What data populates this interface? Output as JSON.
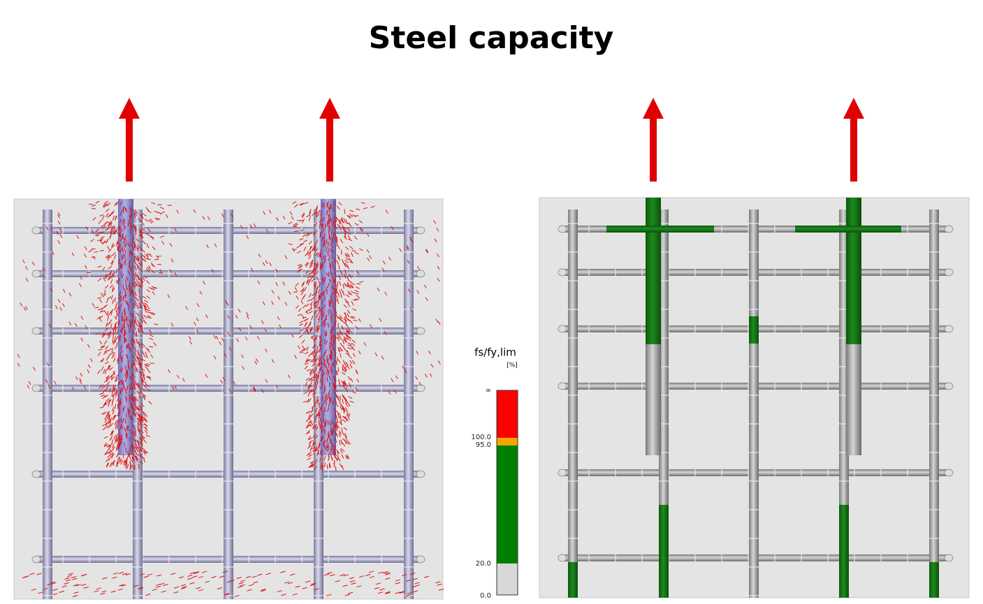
{
  "header": {
    "title": "Steel capacity"
  },
  "legend": {
    "title": "fs/fy,lim",
    "unit": "[%]",
    "labels": [
      "∞",
      "100.0",
      "95.0",
      "20.0",
      "0.0"
    ]
  }
}
